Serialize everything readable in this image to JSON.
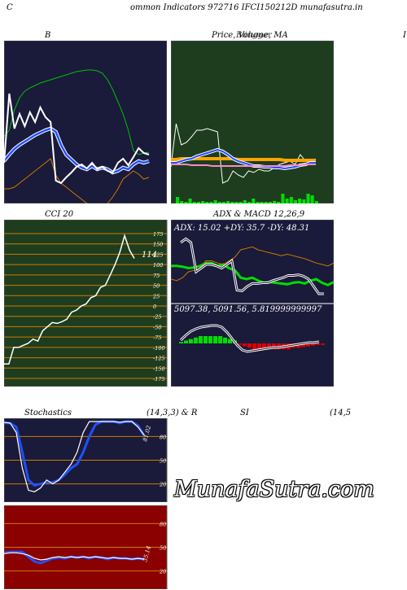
{
  "header": {
    "title": "ommon  Indicators 972716  IFCI150212D munafasutra.in",
    "left_letter": "C",
    "right_letter": "I"
  },
  "brand": "MunafaSutra.com",
  "colors": {
    "navy": "#1a1a3a",
    "green_panel": "#1e3d1e",
    "red_panel": "#8b0000",
    "orange": "#cc7a00",
    "blue": "#1a3cff",
    "lime": "#00dd00"
  },
  "chart_data": [
    {
      "id": "bollinger",
      "type": "line",
      "title": "B",
      "series": [
        {
          "role": "upper-band",
          "color": "#00c000",
          "values": [
            118,
            110,
            85,
            70,
            62,
            58,
            55,
            52,
            50,
            48,
            46,
            44,
            42,
            40,
            38,
            37,
            36,
            36,
            37,
            40,
            48,
            60,
            75,
            90,
            110,
            135,
            140,
            138,
            137
          ]
        },
        {
          "role": "middle-band",
          "color": "#2050ff",
          "values": [
            148,
            140,
            133,
            128,
            124,
            120,
            116,
            113,
            110,
            108,
            112,
            128,
            140,
            146,
            152,
            156,
            158,
            154,
            158,
            156,
            158,
            162,
            160,
            156,
            158,
            152,
            148,
            150,
            148
          ]
        },
        {
          "role": "lower-band",
          "color": "#cc7a00",
          "values": [
            182,
            182,
            180,
            175,
            170,
            165,
            160,
            155,
            150,
            145,
            165,
            175,
            180,
            185,
            190,
            195,
            200,
            205,
            207,
            206,
            200,
            192,
            182,
            170,
            165,
            160,
            164,
            170,
            168
          ]
        },
        {
          "role": "price",
          "color": "#ffffff",
          "values": [
            150,
            65,
            108,
            90,
            105,
            88,
            100,
            82,
            94,
            100,
            172,
            175,
            168,
            162,
            155,
            152,
            157,
            150,
            158,
            155,
            160,
            162,
            150,
            145,
            153,
            143,
            132,
            138,
            140
          ]
        }
      ]
    },
    {
      "id": "price-ma",
      "type": "line",
      "title": "Price,  Volume,  MA",
      "overlay_title": "Blingger",
      "series": [
        {
          "role": "price",
          "color": "#ffffff",
          "values": [
            155,
            102,
            128,
            125,
            118,
            110,
            110,
            108,
            110,
            112,
            175,
            172,
            160,
            165,
            168,
            160,
            162,
            158,
            160,
            160,
            156,
            152,
            150,
            148,
            152,
            140,
            148,
            150,
            145
          ]
        },
        {
          "role": "ma-orange",
          "color": "#ffa500",
          "values": [
            146,
            146,
            145,
            145,
            145,
            145,
            145,
            145,
            145,
            145,
            145,
            145,
            145,
            146,
            146,
            146,
            146,
            146,
            146,
            146,
            146,
            146,
            147,
            147,
            147,
            147,
            147,
            147,
            147
          ]
        },
        {
          "role": "ma-blue",
          "color": "#2050ff",
          "values": [
            150,
            150,
            148,
            146,
            145,
            142,
            140,
            138,
            136,
            134,
            136,
            140,
            145,
            148,
            150,
            152,
            154,
            154,
            155,
            155,
            156,
            156,
            157,
            156,
            155,
            153,
            152,
            150,
            150
          ]
        },
        {
          "role": "ma-pink",
          "color": "#ff88cc",
          "values": [
            152,
            152,
            152,
            152,
            153,
            153,
            153,
            153,
            154,
            154,
            154,
            154,
            154,
            154,
            154,
            154,
            154,
            154,
            154,
            154,
            154,
            154,
            154,
            153,
            153,
            153,
            152,
            152,
            152
          ]
        }
      ],
      "volume": [
        8,
        3,
        2,
        6,
        2,
        2,
        3,
        2,
        2,
        4,
        2,
        2,
        3,
        2,
        2,
        2,
        4,
        2,
        6,
        2,
        2,
        2,
        2,
        3,
        2,
        12,
        6,
        8,
        4,
        6,
        5,
        12,
        10,
        3
      ]
    },
    {
      "id": "cci",
      "type": "line",
      "title": "CCI 20",
      "current_label": "114",
      "ticks": [
        "175",
        "150",
        "125",
        "100",
        "75",
        "50",
        "25",
        "0",
        "-25",
        "-50",
        "-75",
        "-100",
        "-125",
        "-150",
        "-175"
      ],
      "ylim": [
        -175,
        175
      ],
      "values": [
        -140,
        -140,
        -100,
        -100,
        -95,
        -90,
        -80,
        -85,
        -60,
        -50,
        -40,
        -42,
        -38,
        -32,
        -15,
        -10,
        0,
        5,
        20,
        25,
        45,
        50,
        75,
        100,
        130,
        170,
        135,
        115
      ]
    },
    {
      "id": "adx",
      "type": "line",
      "title": "ADX  & MACD 12,26,9",
      "readout": "ADX: 15.02  +DY: 35.7 -DY: 48.31",
      "series": [
        {
          "role": "plus-di",
          "color": "#00dd00",
          "values": [
            48,
            48,
            47,
            45,
            46,
            48,
            52,
            52,
            48,
            50,
            45,
            42,
            32,
            30,
            32,
            28,
            25,
            26,
            25,
            24,
            23,
            25,
            26,
            24,
            28,
            30,
            25,
            22,
            26
          ]
        },
        {
          "role": "minus-di",
          "color": "#cc7a00",
          "values": [
            30,
            28,
            32,
            40,
            42,
            45,
            55,
            55,
            52,
            50,
            55,
            60,
            70,
            72,
            74,
            70,
            68,
            66,
            64,
            62,
            64,
            62,
            60,
            58,
            55,
            52,
            50,
            48,
            52
          ]
        },
        {
          "role": "adx",
          "color": "#ffffff",
          "values": [
            80,
            85,
            80,
            40,
            45,
            50,
            50,
            48,
            45,
            50,
            55,
            15,
            14,
            20,
            24,
            24,
            25,
            25,
            28,
            30,
            32,
            35,
            35,
            36,
            34,
            30,
            20,
            10,
            10
          ]
        }
      ]
    },
    {
      "id": "macd",
      "type": "bar",
      "readout": "5097.38,  5091.56,  5.819999999997",
      "histogram": [
        2,
        4,
        6,
        8,
        10,
        10,
        10,
        10,
        10,
        8,
        6,
        4,
        -2,
        -4,
        -6,
        -8,
        -8,
        -8,
        -8,
        -8,
        -8,
        -8,
        -8,
        -6,
        -6,
        -5,
        -4,
        -3,
        -2,
        -2
      ],
      "macd_line": [
        -4,
        -10,
        -15,
        -18,
        -20,
        -21,
        -22,
        -22,
        -20,
        -14,
        -6,
        2,
        8,
        10,
        9,
        8,
        7,
        6,
        5,
        5,
        4,
        3,
        2,
        1,
        0,
        -1,
        -1,
        -2
      ]
    },
    {
      "id": "stochastics",
      "type": "line",
      "title": "Stochastics",
      "params": "(14,3,3) & R",
      "current_label": "81.02",
      "ticks": [
        "80",
        "50",
        "20"
      ],
      "ylim": [
        0,
        100
      ],
      "series": [
        {
          "role": "k",
          "color": "#2050ff",
          "values": [
            97,
            97,
            92,
            60,
            25,
            18,
            20,
            22,
            22,
            25,
            32,
            40,
            45,
            60,
            80,
            95,
            99,
            99,
            99,
            97,
            99,
            99,
            94,
            81
          ]
        },
        {
          "role": "d",
          "color": "#ffffff",
          "values": [
            98,
            97,
            85,
            40,
            12,
            10,
            15,
            25,
            20,
            25,
            35,
            45,
            60,
            85,
            99,
            99,
            99,
            99,
            99,
            98,
            99,
            99,
            92,
            82
          ]
        }
      ]
    },
    {
      "id": "rsi",
      "type": "line",
      "title": "SI",
      "params": "(14,5",
      "current_label": "35.14",
      "ticks": [
        "80",
        "50",
        "20"
      ],
      "ylim": [
        0,
        100
      ],
      "series": [
        {
          "role": "rsi",
          "color": "#2050ff",
          "values": [
            43,
            44,
            44,
            44,
            38,
            32,
            30,
            33,
            36,
            37,
            36,
            38,
            37,
            38,
            36,
            38,
            37,
            35,
            37,
            36,
            36,
            35,
            36,
            35
          ]
        },
        {
          "role": "rsi-white",
          "color": "#ffffff",
          "values": [
            42,
            43,
            43,
            42,
            40,
            36,
            34,
            35,
            37,
            38,
            37,
            38,
            37,
            38,
            37,
            38,
            37,
            36,
            37,
            36,
            36,
            35,
            36,
            35
          ]
        }
      ]
    }
  ]
}
